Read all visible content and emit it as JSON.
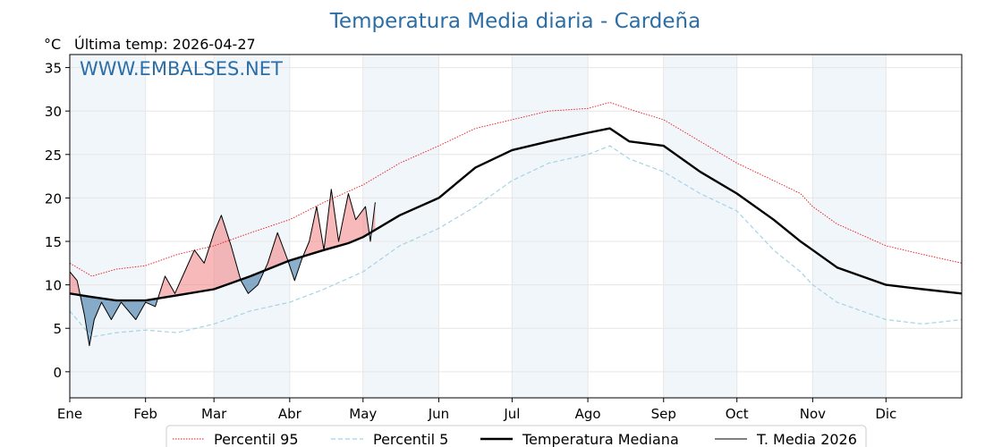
{
  "chart_data": {
    "type": "line",
    "title": "Temperatura Media diaria - Cardeña",
    "ylabel": "°C",
    "subtitle": "Última temp: 2026-04-27",
    "watermark": "WWW.EMBALSES.NET",
    "xlim": [
      1,
      366
    ],
    "ylim": [
      -3,
      36.5
    ],
    "yticks": [
      0,
      5,
      10,
      15,
      20,
      25,
      30,
      35
    ],
    "grid": true,
    "legend_position": "bottom",
    "months": [
      {
        "label": "Ene",
        "start": 1
      },
      {
        "label": "Feb",
        "start": 32
      },
      {
        "label": "Mar",
        "start": 60
      },
      {
        "label": "Abr",
        "start": 91
      },
      {
        "label": "May",
        "start": 121
      },
      {
        "label": "Jun",
        "start": 152
      },
      {
        "label": "Jul",
        "start": 182
      },
      {
        "label": "Ago",
        "start": 213
      },
      {
        "label": "Sep",
        "start": 244
      },
      {
        "label": "Oct",
        "start": 274
      },
      {
        "label": "Nov",
        "start": 305
      },
      {
        "label": "Dic",
        "start": 335
      }
    ],
    "colors": {
      "p95": "#e8141b",
      "p5": "#a5d3e3",
      "median": "#000000",
      "current": "#000000",
      "above": "#f08080",
      "below": "#3f79a8",
      "band": "#f1f6fb",
      "title": "#2b6ea6",
      "watermark": "#2b6ea6"
    },
    "series": [
      {
        "name": "Percentil 95",
        "style": "dotted-red",
        "points": [
          [
            1,
            12.5
          ],
          [
            10,
            11.0
          ],
          [
            20,
            11.8
          ],
          [
            32,
            12.2
          ],
          [
            45,
            13.5
          ],
          [
            60,
            14.5
          ],
          [
            75,
            16.0
          ],
          [
            91,
            17.5
          ],
          [
            105,
            19.5
          ],
          [
            121,
            21.5
          ],
          [
            136,
            24.0
          ],
          [
            152,
            26.0
          ],
          [
            167,
            28.0
          ],
          [
            182,
            29.0
          ],
          [
            197,
            30.0
          ],
          [
            213,
            30.3
          ],
          [
            222,
            31.0
          ],
          [
            230,
            30.2
          ],
          [
            244,
            29.0
          ],
          [
            259,
            26.5
          ],
          [
            274,
            24.0
          ],
          [
            289,
            22.0
          ],
          [
            300,
            20.5
          ],
          [
            305,
            19.0
          ],
          [
            315,
            17.0
          ],
          [
            335,
            14.5
          ],
          [
            350,
            13.5
          ],
          [
            366,
            12.5
          ]
        ]
      },
      {
        "name": "Percentil 5",
        "style": "dashed-lightblue",
        "points": [
          [
            1,
            7.0
          ],
          [
            10,
            4.0
          ],
          [
            20,
            4.5
          ],
          [
            32,
            4.8
          ],
          [
            45,
            4.5
          ],
          [
            60,
            5.5
          ],
          [
            75,
            7.0
          ],
          [
            91,
            8.0
          ],
          [
            105,
            9.5
          ],
          [
            121,
            11.5
          ],
          [
            136,
            14.5
          ],
          [
            152,
            16.5
          ],
          [
            167,
            19.0
          ],
          [
            182,
            22.0
          ],
          [
            197,
            24.0
          ],
          [
            213,
            25.0
          ],
          [
            222,
            26.0
          ],
          [
            230,
            24.5
          ],
          [
            244,
            23.0
          ],
          [
            259,
            20.5
          ],
          [
            274,
            18.5
          ],
          [
            289,
            14.0
          ],
          [
            300,
            11.5
          ],
          [
            305,
            10.0
          ],
          [
            315,
            8.0
          ],
          [
            335,
            6.0
          ],
          [
            350,
            5.5
          ],
          [
            366,
            6.0
          ]
        ]
      },
      {
        "name": "Temperatura Mediana",
        "style": "thick-black",
        "points": [
          [
            1,
            9.0
          ],
          [
            10,
            8.6
          ],
          [
            20,
            8.2
          ],
          [
            32,
            8.2
          ],
          [
            45,
            8.8
          ],
          [
            60,
            9.5
          ],
          [
            75,
            11.0
          ],
          [
            91,
            12.8
          ],
          [
            105,
            14.0
          ],
          [
            115,
            14.8
          ],
          [
            121,
            15.5
          ],
          [
            136,
            18.0
          ],
          [
            152,
            20.0
          ],
          [
            167,
            23.5
          ],
          [
            182,
            25.5
          ],
          [
            197,
            26.5
          ],
          [
            213,
            27.5
          ],
          [
            222,
            28.0
          ],
          [
            230,
            26.5
          ],
          [
            244,
            26.0
          ],
          [
            259,
            23.0
          ],
          [
            274,
            20.5
          ],
          [
            289,
            17.5
          ],
          [
            300,
            15.0
          ],
          [
            305,
            14.0
          ],
          [
            315,
            12.0
          ],
          [
            335,
            10.0
          ],
          [
            350,
            9.5
          ],
          [
            366,
            9.0
          ]
        ]
      },
      {
        "name": "T. Media 2026",
        "style": "thin-black",
        "points": [
          [
            1,
            11.5
          ],
          [
            4,
            10.5
          ],
          [
            7,
            6.5
          ],
          [
            9,
            3.0
          ],
          [
            11,
            6.0
          ],
          [
            14,
            8.0
          ],
          [
            18,
            6.0
          ],
          [
            22,
            8.0
          ],
          [
            28,
            6.0
          ],
          [
            32,
            8.0
          ],
          [
            36,
            7.5
          ],
          [
            40,
            11.0
          ],
          [
            44,
            9.0
          ],
          [
            48,
            11.5
          ],
          [
            52,
            14.0
          ],
          [
            56,
            12.5
          ],
          [
            60,
            16.0
          ],
          [
            63,
            18.0
          ],
          [
            67,
            14.5
          ],
          [
            71,
            10.5
          ],
          [
            74,
            9.0
          ],
          [
            78,
            10.0
          ],
          [
            82,
            12.5
          ],
          [
            86,
            16.0
          ],
          [
            90,
            13.0
          ],
          [
            93,
            10.5
          ],
          [
            96,
            13.0
          ],
          [
            99,
            15.0
          ],
          [
            102,
            19.0
          ],
          [
            105,
            14.0
          ],
          [
            108,
            21.0
          ],
          [
            111,
            15.0
          ],
          [
            115,
            20.5
          ],
          [
            118,
            17.5
          ],
          [
            122,
            19.0
          ],
          [
            124,
            15.0
          ],
          [
            126,
            19.5
          ]
        ]
      }
    ]
  }
}
